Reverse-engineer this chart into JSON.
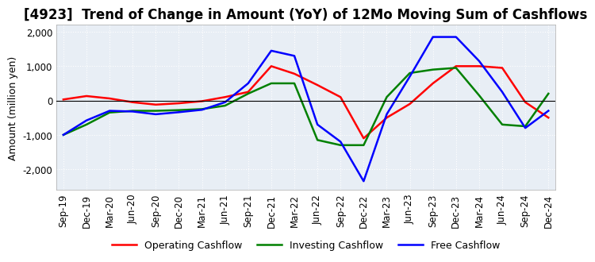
{
  "title": "[4923]  Trend of Change in Amount (YoY) of 12Mo Moving Sum of Cashflows",
  "ylabel": "Amount (million yen)",
  "ylim": [
    -2600,
    2200
  ],
  "yticks": [
    -2000,
    -1000,
    0,
    1000,
    2000
  ],
  "x_labels": [
    "Sep-19",
    "Dec-19",
    "Mar-20",
    "Jun-20",
    "Sep-20",
    "Dec-20",
    "Mar-21",
    "Jun-21",
    "Sep-21",
    "Dec-21",
    "Mar-22",
    "Jun-22",
    "Sep-22",
    "Dec-22",
    "Mar-23",
    "Jun-23",
    "Sep-23",
    "Dec-23",
    "Mar-24",
    "Jun-24",
    "Sep-24",
    "Dec-24"
  ],
  "operating": [
    30,
    130,
    60,
    -50,
    -120,
    -80,
    -20,
    100,
    250,
    1000,
    780,
    450,
    100,
    -1100,
    -500,
    -100,
    500,
    1000,
    1000,
    950,
    -50,
    -500
  ],
  "investing": [
    -1000,
    -700,
    -350,
    -300,
    -300,
    -280,
    -250,
    -150,
    200,
    500,
    500,
    -1150,
    -1300,
    -1300,
    100,
    800,
    900,
    950,
    150,
    -700,
    -750,
    200
  ],
  "free": [
    -1000,
    -580,
    -300,
    -320,
    -400,
    -340,
    -270,
    -50,
    500,
    1450,
    1300,
    -700,
    -1200,
    -2350,
    -400,
    700,
    1850,
    1850,
    1150,
    250,
    -800,
    -300
  ],
  "operating_color": "#ff0000",
  "investing_color": "#008000",
  "free_color": "#0000ff",
  "background_color": "#ffffff",
  "plot_bg_color": "#e8eef5",
  "grid_color": "#ffffff",
  "title_fontsize": 12,
  "label_fontsize": 9,
  "tick_fontsize": 8.5
}
